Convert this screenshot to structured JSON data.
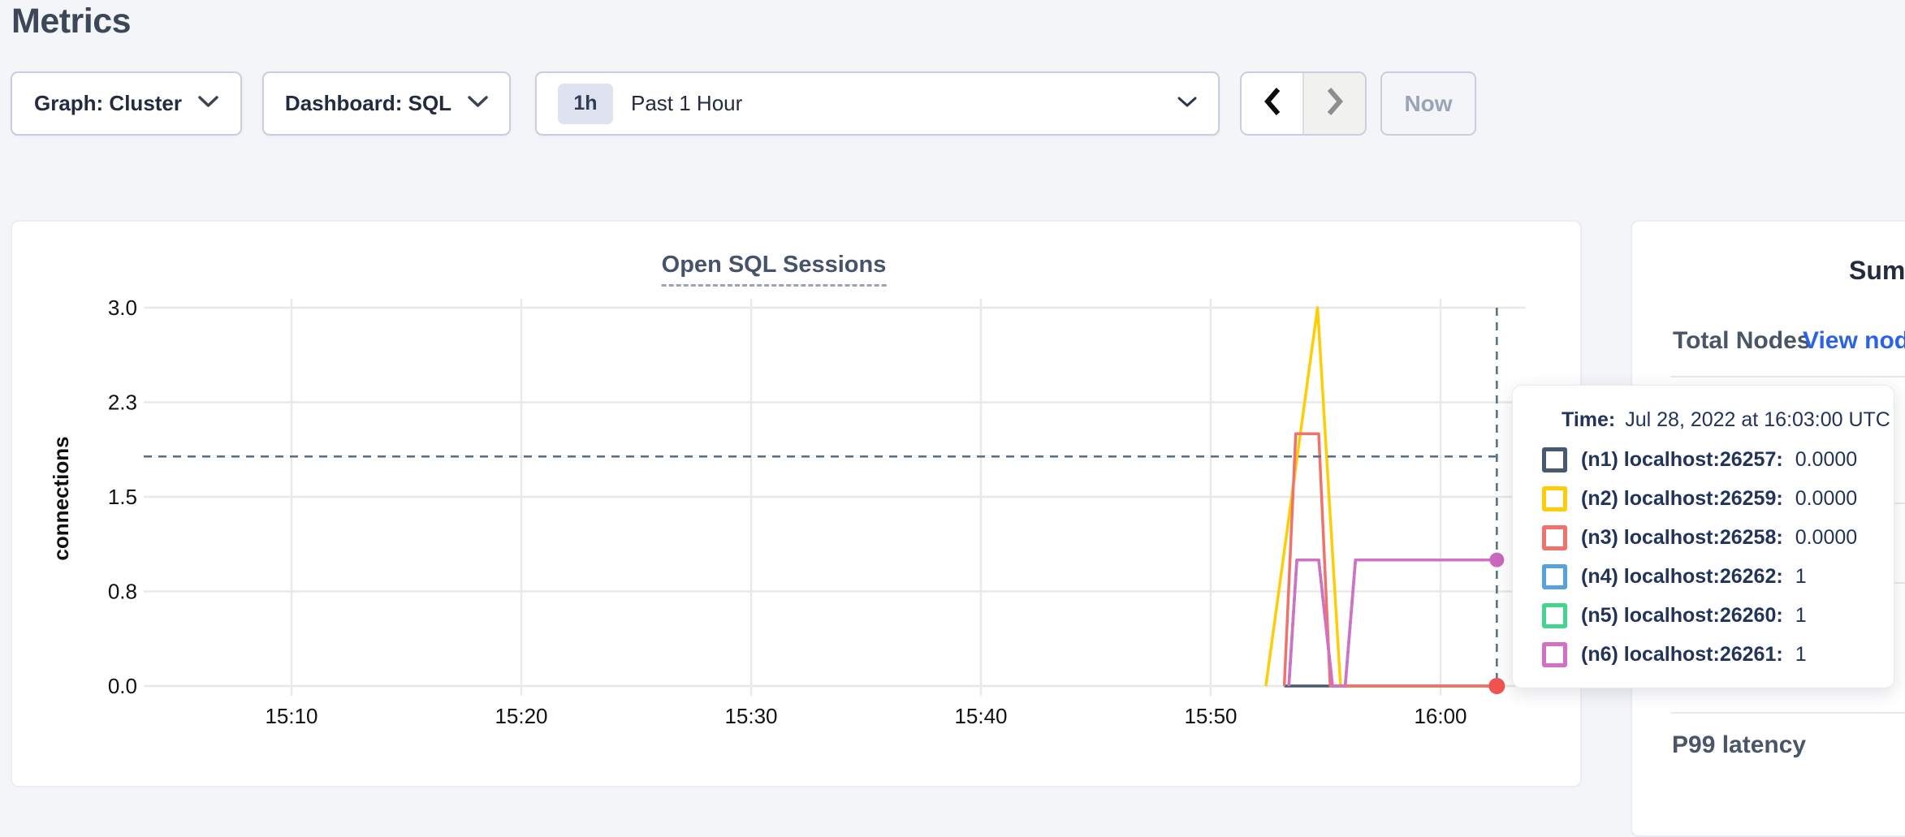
{
  "page": {
    "title": "Metrics"
  },
  "controls": {
    "graph_dropdown": {
      "label": "Graph: Cluster"
    },
    "dashboard_dropdown": {
      "label": "Dashboard: SQL"
    },
    "time_selector": {
      "badge": "1h",
      "label": "Past 1 Hour"
    },
    "nav": {
      "now_label": "Now"
    }
  },
  "chart_data": {
    "type": "line",
    "title": "Open SQL Sessions",
    "ylabel": "connections",
    "xlabel": "",
    "grid": true,
    "x_axis": {
      "tick_labels": [
        "15:10",
        "15:20",
        "15:30",
        "15:40",
        "15:50",
        "16:00"
      ],
      "tick_minutes": [
        10,
        20,
        30,
        40,
        50,
        60
      ],
      "date": "Jul 28, 2022",
      "timezone": "UTC"
    },
    "y_axis": {
      "tick_labels": [
        "0.0",
        "0.8",
        "1.5",
        "2.3",
        "3.0"
      ],
      "tick_values": [
        0,
        0.75,
        1.5,
        2.25,
        3
      ],
      "range": [
        0,
        3
      ]
    },
    "series": [
      {
        "id": "n1",
        "label": "(n1) localhost:26257:",
        "color": "#475872",
        "tooltip_value": "0.0000",
        "points": [
          [
            53.2,
            0
          ],
          [
            62.45,
            0
          ]
        ]
      },
      {
        "id": "n2",
        "label": "(n2) localhost:26259:",
        "color": "#FFCD05",
        "tooltip_value": "0.0000",
        "points": [
          [
            52.4,
            0
          ],
          [
            54.65,
            3
          ],
          [
            55.65,
            0
          ],
          [
            62.45,
            0
          ]
        ]
      },
      {
        "id": "n4",
        "label": "(n4) localhost:26262:",
        "color": "#57A1DD",
        "tooltip_value": "1",
        "points": [
          [
            53.4,
            0
          ],
          [
            53.75,
            1
          ],
          [
            54.7,
            1
          ],
          [
            55.3,
            0
          ],
          [
            55.85,
            0
          ],
          [
            56.3,
            1
          ],
          [
            62.45,
            1
          ]
        ]
      },
      {
        "id": "n5",
        "label": "(n5) localhost:26260:",
        "color": "#45D390",
        "tooltip_value": "1",
        "points": [
          [
            53.4,
            0
          ],
          [
            53.75,
            1
          ],
          [
            54.7,
            1
          ],
          [
            55.3,
            0
          ],
          [
            55.85,
            0
          ],
          [
            56.3,
            1
          ],
          [
            62.45,
            1
          ]
        ]
      },
      {
        "id": "n3",
        "label": "(n3) localhost:26258:",
        "color": "#F1726B",
        "tooltip_value": "0.0000",
        "points": [
          [
            53.2,
            0
          ],
          [
            53.7,
            2
          ],
          [
            54.7,
            2
          ],
          [
            55.2,
            0
          ],
          [
            62.45,
            0
          ]
        ]
      },
      {
        "id": "n6",
        "label": "(n6) localhost:26261:",
        "color": "#D36FC5",
        "tooltip_value": "1",
        "points": [
          [
            53.4,
            0
          ],
          [
            53.75,
            1
          ],
          [
            54.7,
            1
          ],
          [
            55.3,
            0
          ],
          [
            55.85,
            0
          ],
          [
            56.3,
            1
          ],
          [
            62.45,
            1
          ]
        ]
      }
    ],
    "tooltip_order": [
      "n1",
      "n2",
      "n3",
      "n4",
      "n5",
      "n6"
    ],
    "crosshair": {
      "time_minutes": 62.45,
      "hline_value": 1.82,
      "dots": [
        {
          "series": "n6",
          "value": 1,
          "color": "#C968BD",
          "r": 9
        },
        {
          "series": "n3",
          "value": 0,
          "color": "#EF554E",
          "r": 10
        }
      ]
    }
  },
  "tooltip": {
    "time_label": "Time:",
    "time_value": "Jul 28, 2022 at 16:03:00 UTC"
  },
  "sidebar": {
    "summary_title": "Summary",
    "total_nodes_label": "Total Nodes",
    "view_nodes_link": "View nodes",
    "p99_label": "P99 latency"
  }
}
